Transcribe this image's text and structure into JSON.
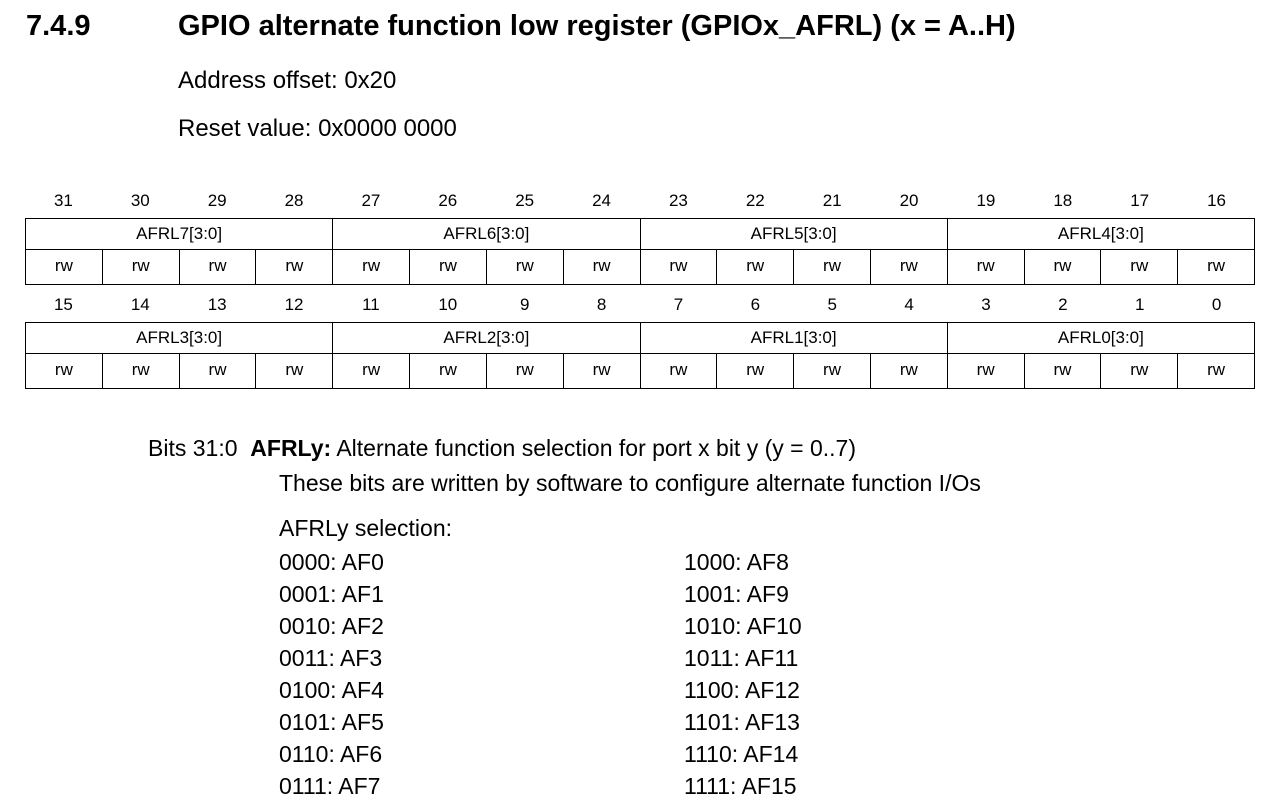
{
  "section": {
    "number": "7.4.9",
    "title": "GPIO alternate function low register (GPIOx_AFRL) (x = A..H)",
    "address_offset": "Address offset: 0x20",
    "reset_value": "Reset value: 0x0000 0000"
  },
  "register": {
    "high": {
      "bit_numbers": [
        "31",
        "30",
        "29",
        "28",
        "27",
        "26",
        "25",
        "24",
        "23",
        "22",
        "21",
        "20",
        "19",
        "18",
        "17",
        "16"
      ],
      "fields": [
        "AFRL7[3:0]",
        "AFRL6[3:0]",
        "AFRL5[3:0]",
        "AFRL4[3:0]"
      ],
      "access": [
        "rw",
        "rw",
        "rw",
        "rw",
        "rw",
        "rw",
        "rw",
        "rw",
        "rw",
        "rw",
        "rw",
        "rw",
        "rw",
        "rw",
        "rw",
        "rw"
      ]
    },
    "low": {
      "bit_numbers": [
        "15",
        "14",
        "13",
        "12",
        "11",
        "10",
        "9",
        "8",
        "7",
        "6",
        "5",
        "4",
        "3",
        "2",
        "1",
        "0"
      ],
      "fields": [
        "AFRL3[3:0]",
        "AFRL2[3:0]",
        "AFRL1[3:0]",
        "AFRL0[3:0]"
      ],
      "access": [
        "rw",
        "rw",
        "rw",
        "rw",
        "rw",
        "rw",
        "rw",
        "rw",
        "rw",
        "rw",
        "rw",
        "rw",
        "rw",
        "rw",
        "rw",
        "rw"
      ]
    }
  },
  "description": {
    "bits_range": "Bits 31:0",
    "field_name": "AFRLy:",
    "field_summary": " Alternate function selection for port x bit y (y = 0..7)",
    "line1": "These bits are written by software to configure alternate function I/Os",
    "selection_heading": "AFRLy selection:",
    "selection_left": [
      "0000: AF0",
      "0001: AF1",
      "0010: AF2",
      "0011: AF3",
      "0100: AF4",
      "0101: AF5",
      "0110: AF6",
      "0111: AF7"
    ],
    "selection_right": [
      "1000: AF8",
      "1001: AF9",
      "1010: AF10",
      "1011: AF11",
      "1100: AF12",
      "1101: AF13",
      "1110: AF14",
      "1111: AF15"
    ]
  }
}
